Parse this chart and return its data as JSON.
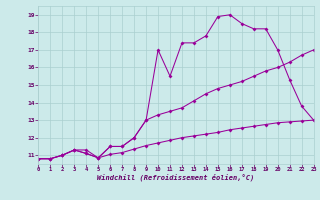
{
  "bg_color": "#cceaea",
  "line_color": "#990099",
  "xlabel": "Windchill (Refroidissement éolien,°C)",
  "xlim": [
    0,
    23
  ],
  "ylim": [
    10.5,
    19.5
  ],
  "xticks": [
    0,
    1,
    2,
    3,
    4,
    5,
    6,
    7,
    8,
    9,
    10,
    11,
    12,
    13,
    14,
    15,
    16,
    17,
    18,
    19,
    20,
    21,
    22,
    23
  ],
  "yticks": [
    11,
    12,
    13,
    14,
    15,
    16,
    17,
    18,
    19
  ],
  "line_flat_x": [
    0,
    1,
    2,
    3,
    4,
    5,
    6,
    7,
    8,
    9,
    10,
    11,
    12,
    13,
    14,
    15,
    16,
    17,
    18,
    19,
    20,
    21,
    22,
    23
  ],
  "line_flat_y": [
    10.8,
    10.8,
    11.0,
    11.3,
    11.3,
    10.85,
    11.05,
    11.15,
    11.35,
    11.55,
    11.7,
    11.85,
    12.0,
    12.1,
    12.2,
    12.3,
    12.45,
    12.55,
    12.65,
    12.75,
    12.85,
    12.9,
    12.95,
    13.0
  ],
  "line_diag_x": [
    0,
    1,
    2,
    3,
    4,
    5,
    6,
    7,
    8,
    9,
    10,
    11,
    12,
    13,
    14,
    15,
    16,
    17,
    18,
    19,
    20,
    21,
    22,
    23
  ],
  "line_diag_y": [
    10.8,
    10.8,
    11.0,
    11.3,
    11.1,
    10.85,
    11.5,
    11.5,
    12.0,
    13.0,
    13.3,
    13.5,
    13.7,
    14.1,
    14.5,
    14.8,
    15.0,
    15.2,
    15.5,
    15.8,
    16.0,
    16.3,
    16.7,
    17.0
  ],
  "line_jagged_x": [
    0,
    1,
    2,
    3,
    4,
    5,
    6,
    7,
    8,
    9,
    10,
    11,
    12,
    13,
    14,
    15,
    16,
    17,
    18,
    19,
    20,
    21,
    22,
    23
  ],
  "line_jagged_y": [
    10.8,
    10.8,
    11.0,
    11.3,
    11.1,
    10.85,
    11.5,
    11.5,
    12.0,
    13.0,
    17.0,
    15.5,
    17.4,
    17.4,
    17.8,
    18.9,
    19.0,
    18.5,
    18.2,
    18.2,
    17.0,
    15.3,
    13.8,
    13.0
  ]
}
